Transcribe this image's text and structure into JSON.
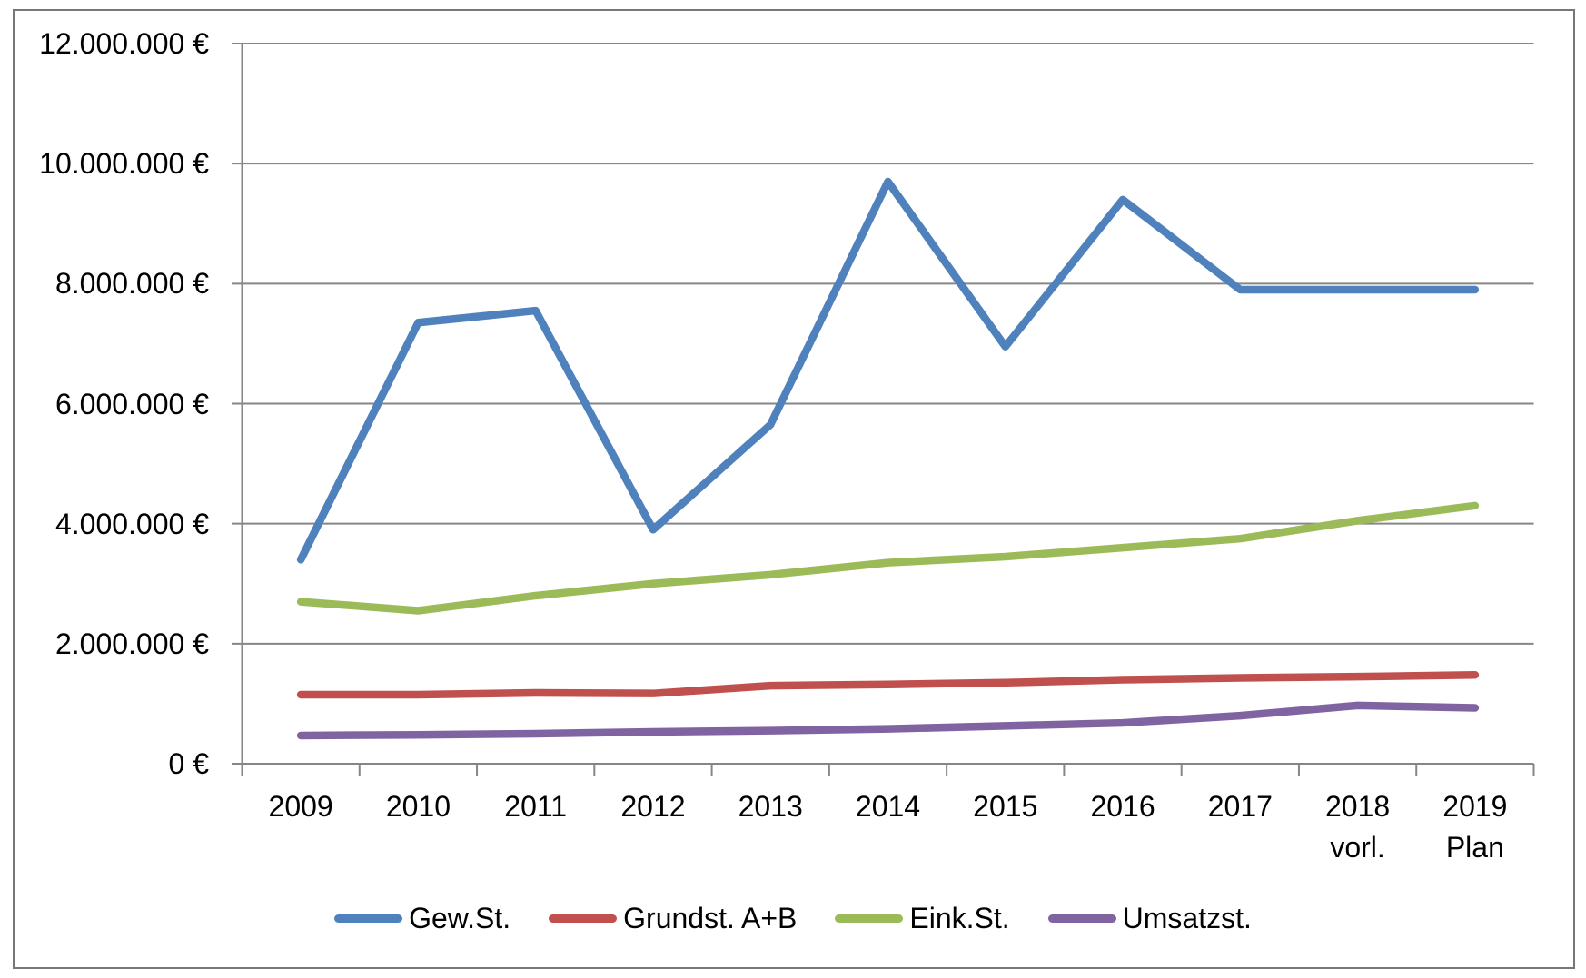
{
  "chart_data": {
    "type": "line",
    "title": "",
    "categories": [
      {
        "label": "2009",
        "sublabel": ""
      },
      {
        "label": "2010",
        "sublabel": ""
      },
      {
        "label": "2011",
        "sublabel": ""
      },
      {
        "label": "2012",
        "sublabel": ""
      },
      {
        "label": "2013",
        "sublabel": ""
      },
      {
        "label": "2014",
        "sublabel": ""
      },
      {
        "label": "2015",
        "sublabel": ""
      },
      {
        "label": "2016",
        "sublabel": ""
      },
      {
        "label": "2017",
        "sublabel": ""
      },
      {
        "label": "2018",
        "sublabel": "vorl."
      },
      {
        "label": "2019",
        "sublabel": "Plan"
      }
    ],
    "y_axis": {
      "min": 0,
      "max": 12000000,
      "step": 2000000,
      "unit": "€",
      "tick_labels_top_down": [
        "12.000.000 €",
        "10.000.000 €",
        "8.000.000 €",
        "6.000.000 €",
        "4.000.000 €",
        "2.000.000 €",
        "0 €"
      ]
    },
    "series": [
      {
        "name": "Gew.St.",
        "color": "#4F81BD",
        "values": [
          3400000,
          7350000,
          7550000,
          3900000,
          5650000,
          9700000,
          6950000,
          9400000,
          7900000,
          7900000,
          7900000
        ]
      },
      {
        "name": "Grundst. A+B",
        "color": "#C0504D",
        "values": [
          1150000,
          1150000,
          1180000,
          1170000,
          1300000,
          1320000,
          1350000,
          1400000,
          1430000,
          1450000,
          1480000
        ]
      },
      {
        "name": "Eink.St.",
        "color": "#9BBB59",
        "values": [
          2700000,
          2550000,
          2800000,
          3000000,
          3150000,
          3350000,
          3450000,
          3600000,
          3750000,
          4050000,
          4300000
        ]
      },
      {
        "name": "Umsatzst.",
        "color": "#8064A2",
        "values": [
          470000,
          480000,
          500000,
          530000,
          550000,
          580000,
          630000,
          680000,
          800000,
          970000,
          930000
        ]
      }
    ],
    "grid": true,
    "legend_position": "bottom"
  },
  "styles": {
    "background": "#FFFFFF",
    "grid_color": "#868686",
    "axis_color": "#868686",
    "text_color": "#000000",
    "frame_border_color": "#777777",
    "series_line_width": 8.5
  }
}
